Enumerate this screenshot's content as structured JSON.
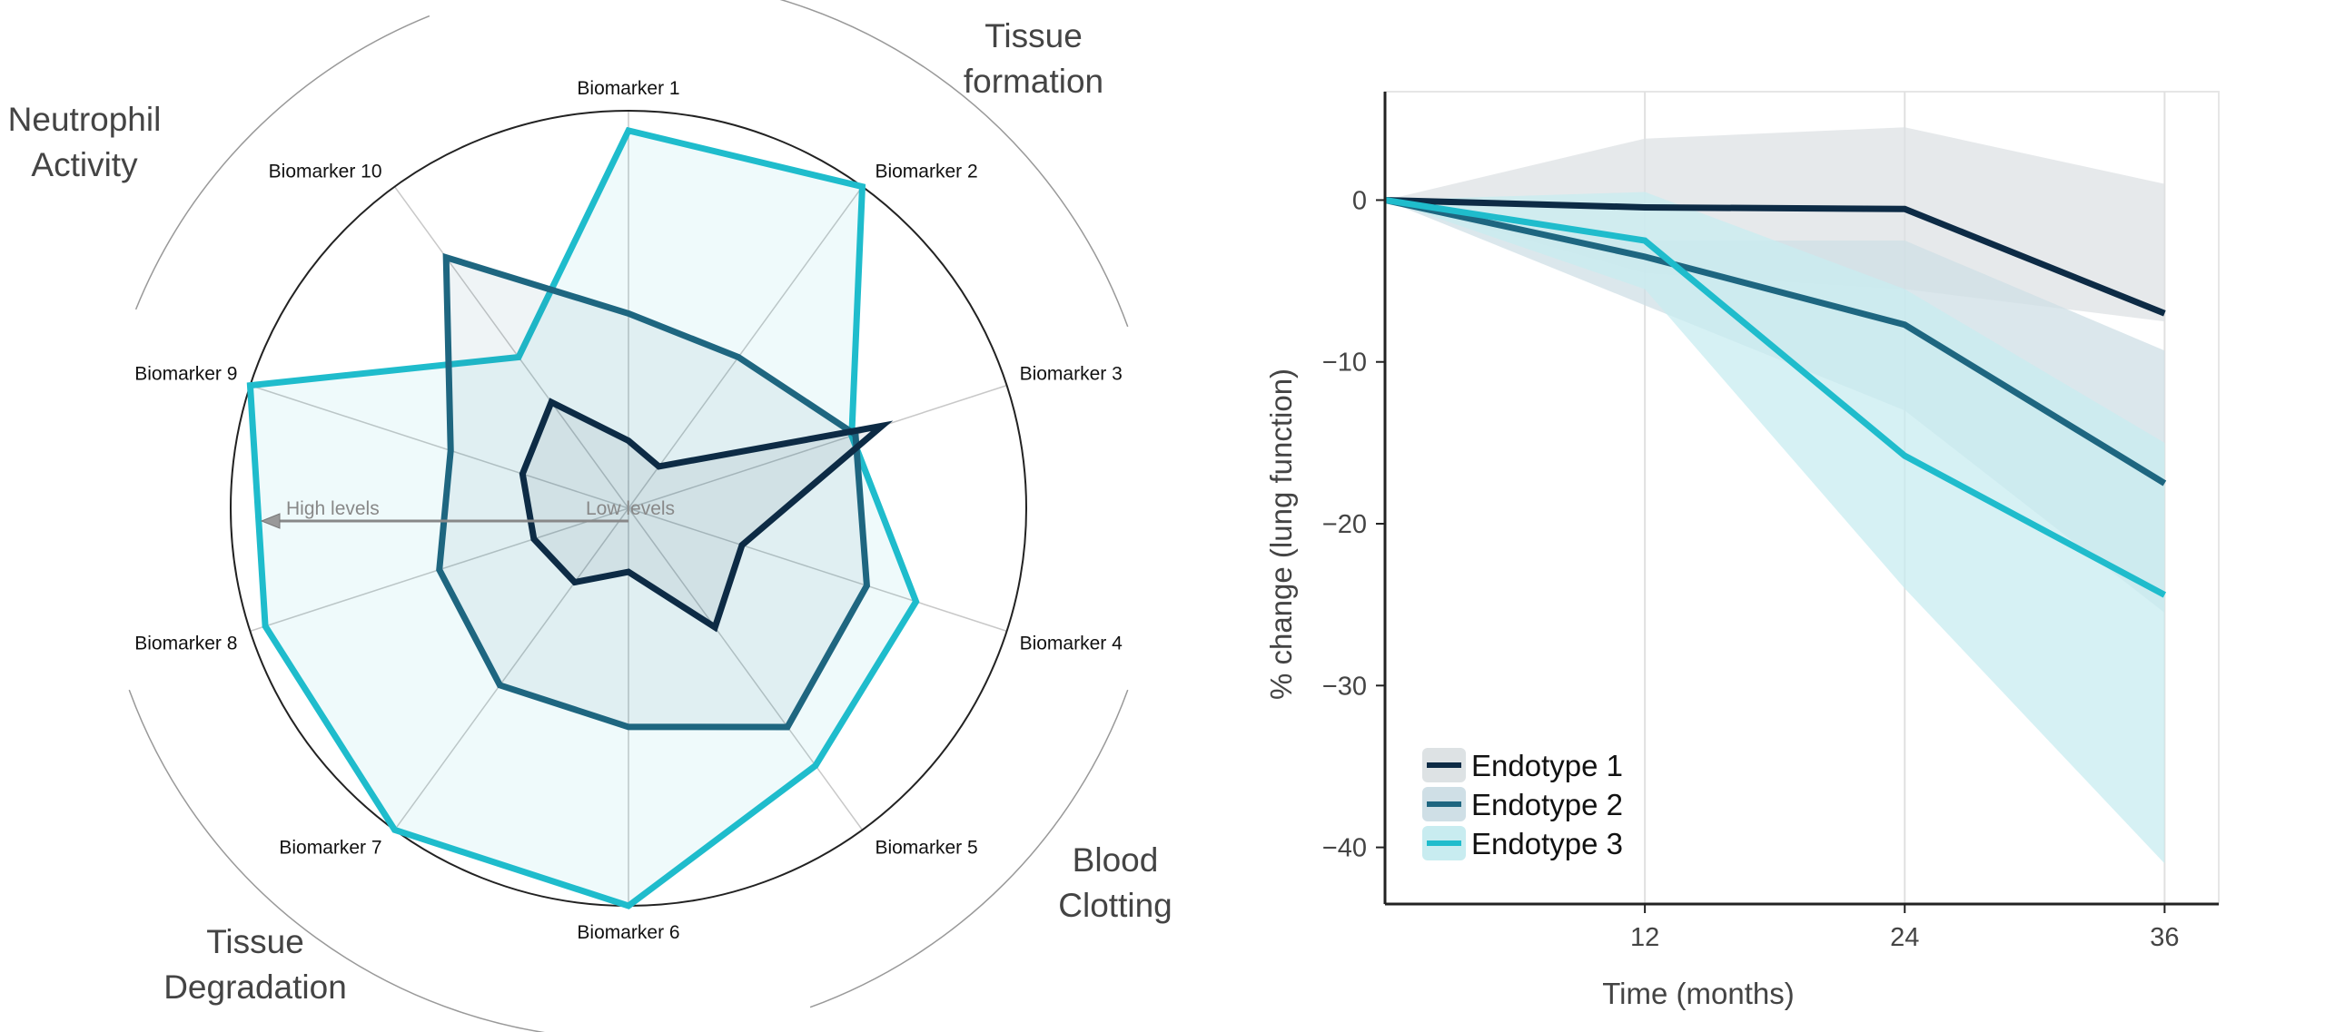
{
  "chart_data": [
    {
      "type": "radar",
      "categories": [
        "Biomarker 1",
        "Biomarker 2",
        "Biomarker 3",
        "Biomarker 4",
        "Biomarker 5",
        "Biomarker 6",
        "Biomarker 7",
        "Biomarker 8",
        "Biomarker 9",
        "Biomarker 10"
      ],
      "range": [
        0,
        1
      ],
      "center_label": "Low levels",
      "outer_label": "High levels",
      "groups": [
        {
          "label": [
            "Tissue",
            "formation"
          ]
        },
        {
          "label": [
            "Blood",
            "Clotting"
          ]
        },
        {
          "label": [
            "Tissue",
            "Degradation"
          ]
        },
        {
          "label": [
            "Neutrophil",
            "Activity"
          ]
        }
      ],
      "series": [
        {
          "values": [
            0.95,
            1.0,
            0.59,
            0.76,
            0.8,
            1.0,
            1.0,
            0.96,
            1.0,
            0.47
          ],
          "color": "#1fbccc"
        },
        {
          "values": [
            0.49,
            0.47,
            0.6,
            0.63,
            0.68,
            0.55,
            0.55,
            0.5,
            0.47,
            0.78
          ],
          "color": "#1e6680"
        },
        {
          "values": [
            0.17,
            0.13,
            0.67,
            0.3,
            0.37,
            0.16,
            0.23,
            0.25,
            0.28,
            0.33
          ],
          "color": "#0d2b45"
        }
      ]
    },
    {
      "type": "line",
      "x": [
        0,
        12,
        24,
        36
      ],
      "xticks": [
        "12",
        "24",
        "36"
      ],
      "xlabel": "Time (months)",
      "ylabel": "% change (lung function)",
      "yticks": [
        "0",
        "−10",
        "−20",
        "−30",
        "−40"
      ],
      "ylim": [
        -43.5,
        6.7
      ],
      "xlim": [
        0,
        38.5
      ],
      "grid": "vertical",
      "legend_position": "bottom-left",
      "series": [
        {
          "name": "Endotype 1",
          "color": "#0d2b45",
          "band_color": "#dde2e4",
          "values": [
            0,
            -0.45,
            -0.55,
            -7.0
          ],
          "upper": [
            0,
            3.8,
            4.5,
            1.0
          ],
          "lower": [
            0,
            -4.5,
            -5.5,
            -7.5
          ]
        },
        {
          "name": "Endotype 2",
          "color": "#1e6680",
          "band_color": "#cfdfe6",
          "values": [
            0,
            -3.5,
            -7.7,
            -17.5
          ],
          "upper": [
            0,
            -2.5,
            -2.5,
            -9.3
          ],
          "lower": [
            0,
            -6.5,
            -13.0,
            -25.5
          ]
        },
        {
          "name": "Endotype 3",
          "color": "#1fbccc",
          "band_color": "#c8ecf0",
          "values": [
            0,
            -2.5,
            -15.8,
            -24.4
          ],
          "upper": [
            0,
            0.5,
            -5.5,
            -15.0
          ],
          "lower": [
            0,
            -5.5,
            -24.0,
            -41.0
          ]
        }
      ]
    }
  ]
}
